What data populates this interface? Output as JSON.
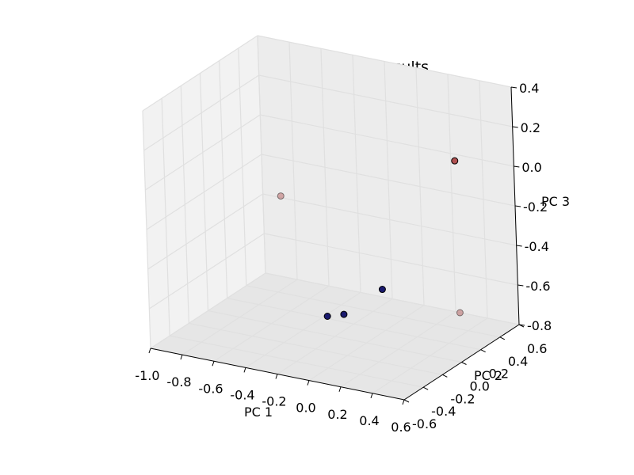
{
  "chart_data": {
    "type": "scatter",
    "projection": "3d",
    "title": "Kmeans PCA scatter results",
    "xlabel": "PC 1",
    "ylabel": "PC 2",
    "zlabel": "PC 3",
    "xlim": [
      -1.0,
      0.6
    ],
    "ylim": [
      -0.6,
      0.6
    ],
    "zlim": [
      -0.8,
      0.4
    ],
    "xticks": [
      "-1.0",
      "-0.8",
      "-0.6",
      "-0.4",
      "-0.2",
      "0.0",
      "0.2",
      "0.4",
      "0.6"
    ],
    "yticks": [
      "-0.6",
      "-0.4",
      "-0.2",
      "0.0",
      "0.2",
      "0.4",
      "0.6"
    ],
    "zticks": [
      "-0.8",
      "-0.6",
      "-0.4",
      "-0.2",
      "0.0",
      "0.2",
      "0.4"
    ],
    "grid": true,
    "colors": {
      "cluster_1": "#1a1a6e",
      "cluster_2": "#b05050",
      "pane_back": "#ececec",
      "pane_side": "#f2f2f2",
      "pane_floor": "#e6e6e6",
      "grid": "#e0e0e0"
    },
    "points": [
      {
        "x": -0.28,
        "y": 0.06,
        "z": -0.73,
        "cluster": "cluster_1",
        "alpha": 1.0
      },
      {
        "x": -0.2,
        "y": 0.1,
        "z": -0.72,
        "cluster": "cluster_1",
        "alpha": 1.0
      },
      {
        "x": -0.05,
        "y": 0.26,
        "z": -0.62,
        "cluster": "cluster_1",
        "alpha": 1.0
      },
      {
        "x": 0.35,
        "y": 0.4,
        "z": 0.05,
        "cluster": "cluster_2",
        "alpha": 1.0
      },
      {
        "x": -0.75,
        "y": 0.38,
        "z": -0.3,
        "cluster": "cluster_2",
        "alpha": 0.45
      },
      {
        "x": 0.6,
        "y": 0.0,
        "z": -0.55,
        "cluster": "cluster_2",
        "alpha": 0.45
      }
    ]
  }
}
